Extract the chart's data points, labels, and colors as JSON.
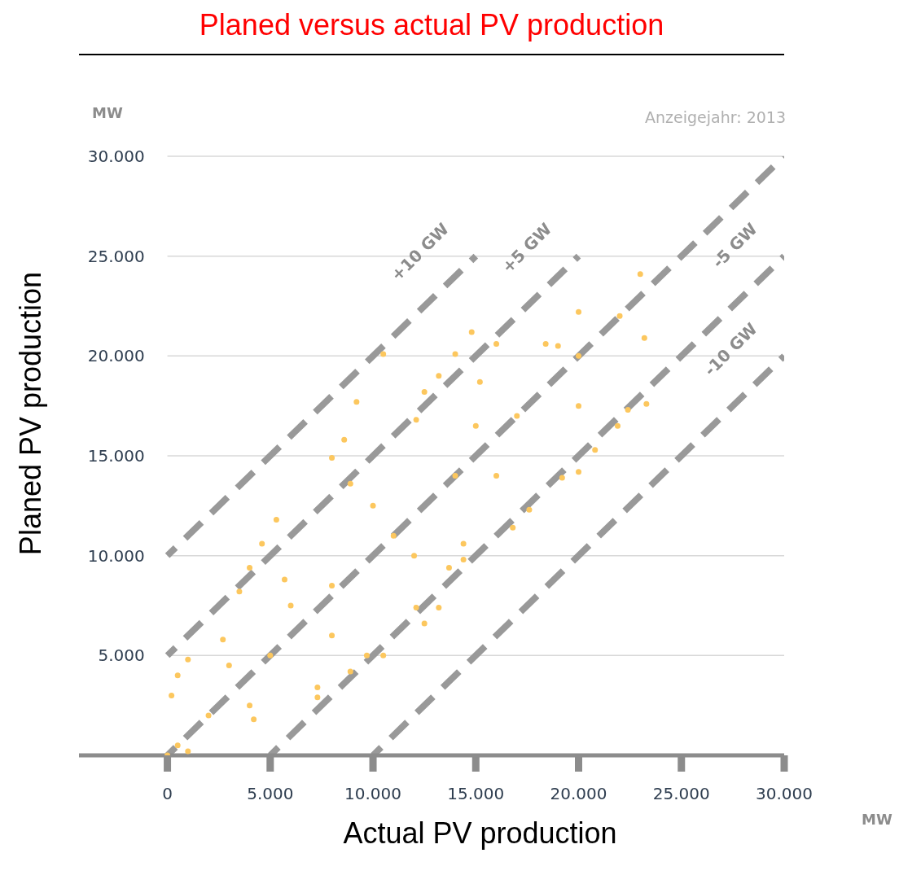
{
  "chart_data": {
    "type": "scatter",
    "title": "Planed versus actual PV production",
    "xlabel": "Actual PV production",
    "ylabel": "Planed PV production",
    "annotations": [
      "MW",
      "MW",
      "Anzeigejahr: 2013"
    ],
    "xlim": [
      -4300,
      30000
    ],
    "ylim": [
      0,
      30000
    ],
    "xticks": [
      0,
      {
        "value": 5000,
        "label": "5.000"
      },
      {
        "value": 10000,
        "label": "10.000"
      },
      {
        "value": 15000,
        "label": "15.000"
      },
      {
        "value": 20000,
        "label": "20.000"
      },
      {
        "value": 25000,
        "label": "25.000"
      },
      {
        "value": 30000,
        "label": "30.000"
      }
    ],
    "yticks": [
      {
        "value": 5000,
        "label": "5.000"
      },
      {
        "value": 10000,
        "label": "10.000"
      },
      {
        "value": 15000,
        "label": "15.000"
      },
      {
        "value": 20000,
        "label": "20.000"
      },
      {
        "value": 25000,
        "label": "25.000"
      },
      {
        "value": 30000,
        "label": "30.000"
      }
    ],
    "grid": "y",
    "legend": false,
    "series": [
      {
        "color": "#fcc75e",
        "marker": "circle",
        "x": [
          0,
          200,
          500,
          1000,
          2700,
          5700,
          8900,
          12100,
          15200,
          18400,
          20000,
          23000,
          1000,
          4200,
          7300,
          9700,
          12100,
          14400,
          16800,
          20000,
          22400,
          23200,
          10500,
          9200,
          8600,
          8000,
          14800,
          14000,
          13200,
          12500,
          16000,
          5300,
          4600,
          4000,
          3500,
          23300,
          21900,
          20800,
          19200,
          17600,
          13200,
          12500,
          10500,
          8900,
          7300,
          14400,
          13700,
          2000,
          5000,
          8000,
          11000,
          14000,
          17000,
          20000,
          22000,
          3000,
          6000,
          10000,
          15000,
          19000,
          4000,
          8000,
          12000,
          16000,
          20000,
          500
        ],
        "values": [
          0,
          3000,
          4000,
          4800,
          5800,
          8800,
          13600,
          16800,
          18700,
          20600,
          22200,
          24100,
          200,
          1800,
          3400,
          5000,
          7400,
          9800,
          11400,
          14200,
          17300,
          20900,
          20100,
          17700,
          15800,
          14900,
          21200,
          20100,
          19000,
          18200,
          20600,
          11800,
          10600,
          9400,
          8200,
          17600,
          16500,
          15300,
          13900,
          12300,
          7400,
          6600,
          5000,
          4200,
          2900,
          10600,
          9400,
          2000,
          5000,
          8500,
          11000,
          14000,
          17000,
          20000,
          22000,
          4500,
          7500,
          12500,
          16500,
          20500,
          2500,
          6000,
          10000,
          14000,
          17500,
          500
        ]
      },
      {
        "type": "line",
        "name": "+10 GW",
        "color": "#999999",
        "line_style": "dashed",
        "marker": "none",
        "x": [
          0,
          15000
        ],
        "values": [
          10000,
          25000
        ]
      },
      {
        "type": "line",
        "name": "+5 GW",
        "color": "#999999",
        "line_style": "dashed",
        "marker": "none",
        "x": [
          0,
          20000
        ],
        "values": [
          5000,
          25000
        ]
      },
      {
        "type": "line",
        "color": "#999999",
        "line_style": "dashed",
        "marker": "none",
        "x": [
          0,
          30000
        ],
        "values": [
          0,
          30000
        ]
      },
      {
        "type": "line",
        "name": "-5 GW",
        "color": "#999999",
        "line_style": "dashed",
        "marker": "none",
        "x": [
          5000,
          30000
        ],
        "values": [
          0,
          25000
        ]
      },
      {
        "type": "line",
        "name": "-10 GW",
        "color": "#999999",
        "line_style": "dashed",
        "marker": "none",
        "x": [
          10000,
          30000
        ],
        "values": [
          0,
          20000
        ]
      }
    ]
  }
}
